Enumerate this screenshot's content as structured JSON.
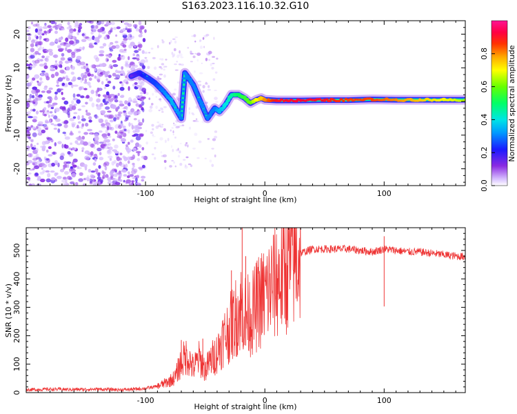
{
  "title": "S163.2023.116.10.32.G10",
  "colors": {
    "snr_line": "#ee3333",
    "scatter_purple": "#8a2be2",
    "track_high": "#ff2a2a"
  },
  "chart_data": [
    {
      "type": "heatmap",
      "title": "",
      "xlabel": "Height of straight line (km)",
      "ylabel": "Frequency (Hz)",
      "xlim": [
        -200,
        168
      ],
      "ylim": [
        -25,
        24
      ],
      "x_ticks": [
        -100,
        0,
        100
      ],
      "x_tick_labels": [
        "-100",
        "0",
        "100"
      ],
      "y_ticks": [
        -20,
        -10,
        0,
        10,
        20
      ],
      "y_tick_labels": [
        "-20",
        "-10",
        "0",
        "10",
        "20"
      ],
      "colorbar": {
        "label": "Normalized spectral amplitude",
        "range": [
          0,
          1
        ],
        "ticks": [
          0.0,
          0.2,
          0.4,
          0.6,
          0.8
        ],
        "tick_labels": [
          "0.0",
          "0.2",
          "0.4",
          "0.6",
          "0.8"
        ]
      },
      "frequency_track": {
        "x": [
          -112,
          -105,
          -98,
          -92,
          -85,
          -78,
          -70,
          -67,
          -60,
          -54,
          -48,
          -42,
          -38,
          -33,
          -28,
          -22,
          -17,
          -12,
          -7,
          -3,
          0,
          10,
          30,
          50,
          70,
          90,
          110,
          130,
          150,
          168
        ],
        "y": [
          7.5,
          8.5,
          7.0,
          5.5,
          3.0,
          0.0,
          -5.0,
          8.5,
          5.0,
          0.0,
          -5.0,
          -2.0,
          -3.0,
          -1.0,
          2.0,
          2.0,
          1.0,
          -0.5,
          0.5,
          1.0,
          0.5,
          0.3,
          0.3,
          0.4,
          0.4,
          0.6,
          0.5,
          0.5,
          0.5,
          0.5
        ],
        "amplitude": [
          0.15,
          0.2,
          0.25,
          0.25,
          0.3,
          0.35,
          0.3,
          0.3,
          0.3,
          0.3,
          0.3,
          0.3,
          0.35,
          0.4,
          0.45,
          0.5,
          0.55,
          0.6,
          0.7,
          0.75,
          0.8,
          0.9,
          0.92,
          0.9,
          0.85,
          0.85,
          0.8,
          0.75,
          0.7,
          0.65
        ]
      }
    },
    {
      "type": "line",
      "title": "",
      "xlabel": "Height of straight line (km)",
      "ylabel": "SNR (10 * v/v)",
      "xlim": [
        -200,
        168
      ],
      "ylim": [
        0,
        580
      ],
      "x_ticks": [
        -100,
        0,
        100
      ],
      "x_tick_labels": [
        "-100",
        "0",
        "100"
      ],
      "y_ticks": [
        0,
        100,
        200,
        300,
        400,
        500
      ],
      "y_tick_labels": [
        "0",
        "100",
        "200",
        "300",
        "400",
        "500"
      ],
      "series": [
        {
          "name": "SNR",
          "x": [
            -200,
            -180,
            -160,
            -140,
            -120,
            -110,
            -100,
            -90,
            -80,
            -75,
            -70,
            -65,
            -60,
            -55,
            -50,
            -45,
            -40,
            -35,
            -30,
            -25,
            -20,
            -15,
            -10,
            -5,
            0,
            5,
            10,
            15,
            20,
            25,
            30,
            40,
            50,
            60,
            70,
            80,
            90,
            100,
            110,
            120,
            130,
            140,
            150,
            160,
            168
          ],
          "y": [
            10,
            12,
            11,
            12,
            10,
            12,
            15,
            22,
            40,
            55,
            110,
            130,
            85,
            120,
            80,
            115,
            140,
            190,
            220,
            260,
            300,
            270,
            280,
            320,
            340,
            370,
            395,
            415,
            450,
            475,
            490,
            505,
            505,
            505,
            505,
            500,
            495,
            505,
            500,
            495,
            495,
            490,
            485,
            480,
            478
          ],
          "color": "#ee3333"
        }
      ],
      "spikes": [
        {
          "x": -19,
          "y": 580
        },
        {
          "x": -28,
          "y": 430
        },
        {
          "x": -16,
          "y": 480
        },
        {
          "x": -70,
          "y": 185
        },
        {
          "x": -52,
          "y": 190
        },
        {
          "x": 100,
          "y": 550
        }
      ]
    }
  ]
}
